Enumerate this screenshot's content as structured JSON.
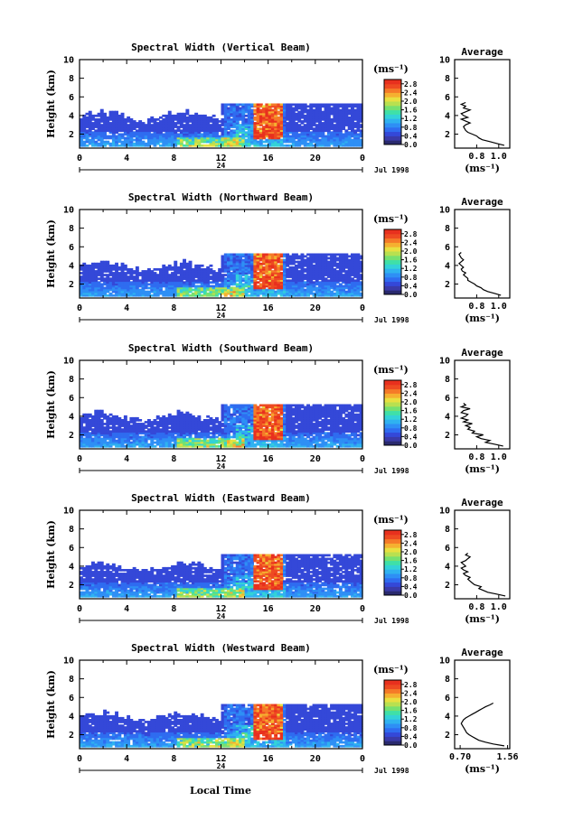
{
  "figure": {
    "xlabel": "Local Time",
    "date_label": "Jul 1998",
    "day_label": "24",
    "colorbar_unit": "(ms⁻¹)",
    "colorbar_ticks": [
      "2.8",
      "2.4",
      "2.0",
      "1.6",
      "1.2",
      "0.8",
      "0.4",
      "0.0"
    ],
    "colormap": [
      "#2a2a6e",
      "#3a3aa8",
      "#3448d8",
      "#2f6cf0",
      "#2e8ff5",
      "#2fb2f0",
      "#33d2d8",
      "#3fe0a8",
      "#76e070",
      "#b8e050",
      "#e8e040",
      "#f5b030",
      "#f57a28",
      "#ee4a22",
      "#e8301e"
    ]
  },
  "chart_data": [
    {
      "type": "heatmap",
      "title": "Spectral Width (Vertical Beam)",
      "ylabel": "Height (km)",
      "xlim": [
        0,
        24
      ],
      "ylim": [
        0.5,
        10
      ],
      "x_ticks": [
        "0",
        "4",
        "8",
        "12",
        "16",
        "20",
        "0"
      ],
      "y_ticks": [
        "2",
        "4",
        "6",
        "8",
        "10"
      ],
      "zlim": [
        0.0,
        3.0
      ],
      "profile": {
        "title": "Average",
        "xlabel": "(ms⁻¹)",
        "x_ticks": [
          "0.8",
          "1.0"
        ],
        "xlim": [
          0.6,
          1.1
        ],
        "y_ticks": [
          "2",
          "4",
          "6",
          "8",
          "10"
        ],
        "ylim": [
          0.5,
          10
        ],
        "heights": [
          0.8,
          1.0,
          1.2,
          1.4,
          1.6,
          1.8,
          2.0,
          2.2,
          2.4,
          2.6,
          2.8,
          3.0,
          3.2,
          3.4,
          3.6,
          3.8,
          4.0,
          4.2,
          4.4,
          4.6,
          4.8,
          5.0,
          5.2,
          5.4
        ],
        "values": [
          1.05,
          0.98,
          0.92,
          0.85,
          0.82,
          0.8,
          0.76,
          0.72,
          0.7,
          0.69,
          0.68,
          0.7,
          0.74,
          0.7,
          0.66,
          0.72,
          0.68,
          0.66,
          0.7,
          0.74,
          0.68,
          0.7,
          0.66,
          0.7
        ]
      }
    },
    {
      "type": "heatmap",
      "title": "Spectral Width (Northward Beam)",
      "ylabel": "Height (km)",
      "xlim": [
        0,
        24
      ],
      "ylim": [
        0.5,
        10
      ],
      "x_ticks": [
        "0",
        "4",
        "8",
        "12",
        "16",
        "20",
        "0"
      ],
      "y_ticks": [
        "2",
        "4",
        "6",
        "8",
        "10"
      ],
      "zlim": [
        0.0,
        3.0
      ],
      "profile": {
        "title": "Average",
        "xlabel": "(ms⁻¹)",
        "x_ticks": [
          "0.8",
          "1.0"
        ],
        "xlim": [
          0.6,
          1.1
        ],
        "y_ticks": [
          "2",
          "4",
          "6",
          "8",
          "10"
        ],
        "ylim": [
          0.5,
          10
        ],
        "heights": [
          0.8,
          1.0,
          1.2,
          1.4,
          1.6,
          1.8,
          2.0,
          2.2,
          2.4,
          2.6,
          2.8,
          3.0,
          3.2,
          3.4,
          3.6,
          3.8,
          4.0,
          4.2,
          4.4,
          4.6,
          4.8,
          5.0,
          5.2,
          5.4
        ],
        "values": [
          1.02,
          0.96,
          0.9,
          0.86,
          0.84,
          0.8,
          0.78,
          0.75,
          0.72,
          0.72,
          0.7,
          0.68,
          0.7,
          0.67,
          0.66,
          0.68,
          0.66,
          0.64,
          0.66,
          0.68,
          0.66,
          0.65,
          0.64,
          0.66
        ]
      }
    },
    {
      "type": "heatmap",
      "title": "Spectral Width (Southward Beam)",
      "ylabel": "Height (km)",
      "xlim": [
        0,
        24
      ],
      "ylim": [
        0.5,
        10
      ],
      "x_ticks": [
        "0",
        "4",
        "8",
        "12",
        "16",
        "20",
        "0"
      ],
      "y_ticks": [
        "2",
        "4",
        "6",
        "8",
        "10"
      ],
      "zlim": [
        0.0,
        3.0
      ],
      "profile": {
        "title": "Average",
        "xlabel": "(ms⁻¹)",
        "x_ticks": [
          "0.8",
          "1.0"
        ],
        "xlim": [
          0.6,
          1.1
        ],
        "y_ticks": [
          "2",
          "4",
          "6",
          "8",
          "10"
        ],
        "ylim": [
          0.5,
          10
        ],
        "heights": [
          0.8,
          1.0,
          1.2,
          1.4,
          1.6,
          1.8,
          2.0,
          2.2,
          2.4,
          2.6,
          2.8,
          3.0,
          3.2,
          3.4,
          3.6,
          3.8,
          4.0,
          4.2,
          4.4,
          4.6,
          4.8,
          5.0,
          5.2,
          5.4
        ],
        "values": [
          1.04,
          0.96,
          0.88,
          0.92,
          0.84,
          0.8,
          0.86,
          0.76,
          0.78,
          0.72,
          0.74,
          0.7,
          0.76,
          0.68,
          0.72,
          0.66,
          0.7,
          0.72,
          0.66,
          0.68,
          0.74,
          0.66,
          0.7,
          0.68
        ]
      }
    },
    {
      "type": "heatmap",
      "title": "Spectral Width (Eastward Beam)",
      "ylabel": "Height (km)",
      "xlim": [
        0,
        24
      ],
      "ylim": [
        0.5,
        10
      ],
      "x_ticks": [
        "0",
        "4",
        "8",
        "12",
        "16",
        "20",
        "0"
      ],
      "y_ticks": [
        "2",
        "4",
        "6",
        "8",
        "10"
      ],
      "zlim": [
        0.0,
        3.0
      ],
      "profile": {
        "title": "Average",
        "xlabel": "(ms⁻¹)",
        "x_ticks": [
          "0.8",
          "1.0"
        ],
        "xlim": [
          0.6,
          1.1
        ],
        "y_ticks": [
          "2",
          "4",
          "6",
          "8",
          "10"
        ],
        "ylim": [
          0.5,
          10
        ],
        "heights": [
          0.8,
          1.0,
          1.2,
          1.4,
          1.6,
          1.8,
          2.0,
          2.2,
          2.4,
          2.6,
          2.8,
          3.0,
          3.2,
          3.4,
          3.6,
          3.8,
          4.0,
          4.2,
          4.4,
          4.6,
          4.8,
          5.0,
          5.2,
          5.4
        ],
        "values": [
          1.06,
          0.98,
          0.9,
          0.86,
          0.82,
          0.84,
          0.78,
          0.76,
          0.74,
          0.72,
          0.74,
          0.7,
          0.68,
          0.72,
          0.68,
          0.66,
          0.7,
          0.68,
          0.66,
          0.7,
          0.72,
          0.74,
          0.7,
          0.72
        ]
      }
    },
    {
      "type": "heatmap",
      "title": "Spectral Width (Westward Beam)",
      "ylabel": "Height (km)",
      "xlim": [
        0,
        24
      ],
      "ylim": [
        0.5,
        10
      ],
      "x_ticks": [
        "0",
        "4",
        "8",
        "12",
        "16",
        "20",
        "0"
      ],
      "y_ticks": [
        "2",
        "4",
        "6",
        "8",
        "10"
      ],
      "zlim": [
        0.0,
        3.0
      ],
      "profile": {
        "title": "Average",
        "xlabel": "(ms⁻¹)",
        "x_ticks": [
          "0.70",
          "1.56"
        ],
        "xlim": [
          0.6,
          1.6
        ],
        "y_ticks": [
          "2",
          "4",
          "6",
          "8",
          "10"
        ],
        "ylim": [
          0.5,
          10
        ],
        "heights": [
          0.8,
          1.0,
          1.2,
          1.4,
          1.6,
          1.8,
          2.0,
          2.2,
          2.4,
          2.6,
          2.8,
          3.0,
          3.2,
          3.4,
          3.6,
          3.8,
          4.0,
          4.2,
          4.4,
          4.6,
          4.8,
          5.0,
          5.2,
          5.4
        ],
        "values": [
          1.5,
          1.3,
          1.16,
          1.04,
          0.98,
          0.92,
          0.86,
          0.82,
          0.8,
          0.78,
          0.76,
          0.74,
          0.72,
          0.74,
          0.76,
          0.8,
          0.86,
          0.92,
          0.98,
          1.04,
          1.1,
          1.16,
          1.24,
          1.3
        ]
      }
    }
  ]
}
